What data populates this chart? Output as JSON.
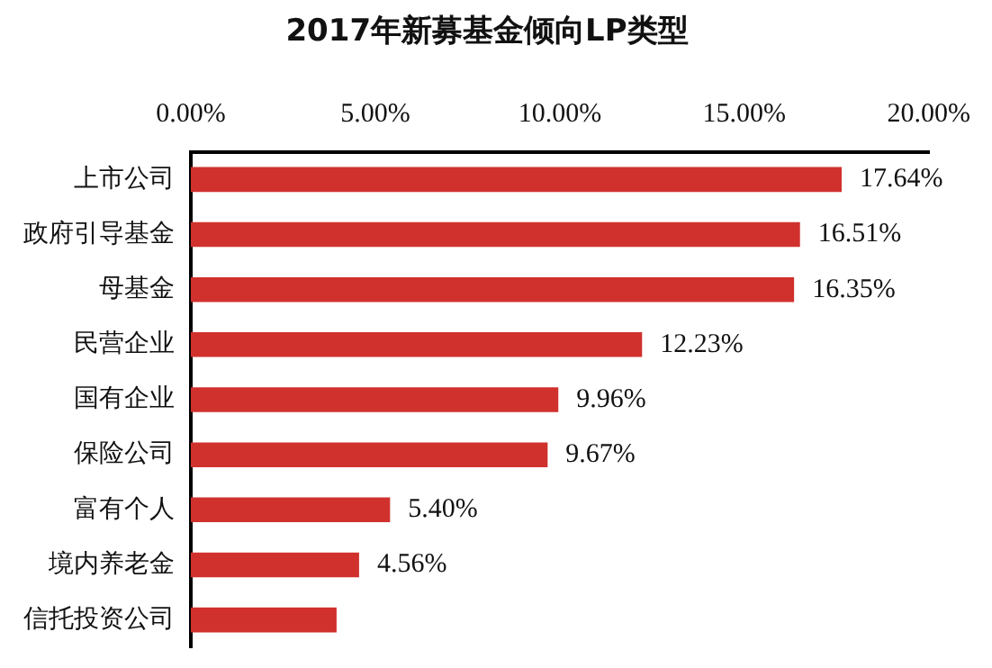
{
  "chart_data": {
    "type": "bar",
    "orientation": "horizontal",
    "title": "2017年新募基金倾向LP类型",
    "categories": [
      "上市公司",
      "政府引导基金",
      "母基金",
      "民营企业",
      "国有企业",
      "保险公司",
      "富有个人",
      "境内养老金",
      "信托投资公司"
    ],
    "values": [
      17.64,
      16.51,
      16.35,
      12.23,
      9.96,
      9.67,
      5.4,
      4.56,
      3.95
    ],
    "value_labels": [
      "17.64%",
      "16.51%",
      "16.35%",
      "12.23%",
      "9.96%",
      "9.67%",
      "5.40%",
      "4.56%",
      null
    ],
    "color": "#d0312d",
    "xlim": [
      0,
      20
    ],
    "xticks": [
      {
        "value": 0,
        "label": "0.00%"
      },
      {
        "value": 5,
        "label": "5.00%"
      },
      {
        "value": 10,
        "label": "10.00%"
      },
      {
        "value": 15,
        "label": "15.00%"
      },
      {
        "value": 20,
        "label": "20.00%"
      }
    ],
    "grid": false,
    "legend": false
  }
}
